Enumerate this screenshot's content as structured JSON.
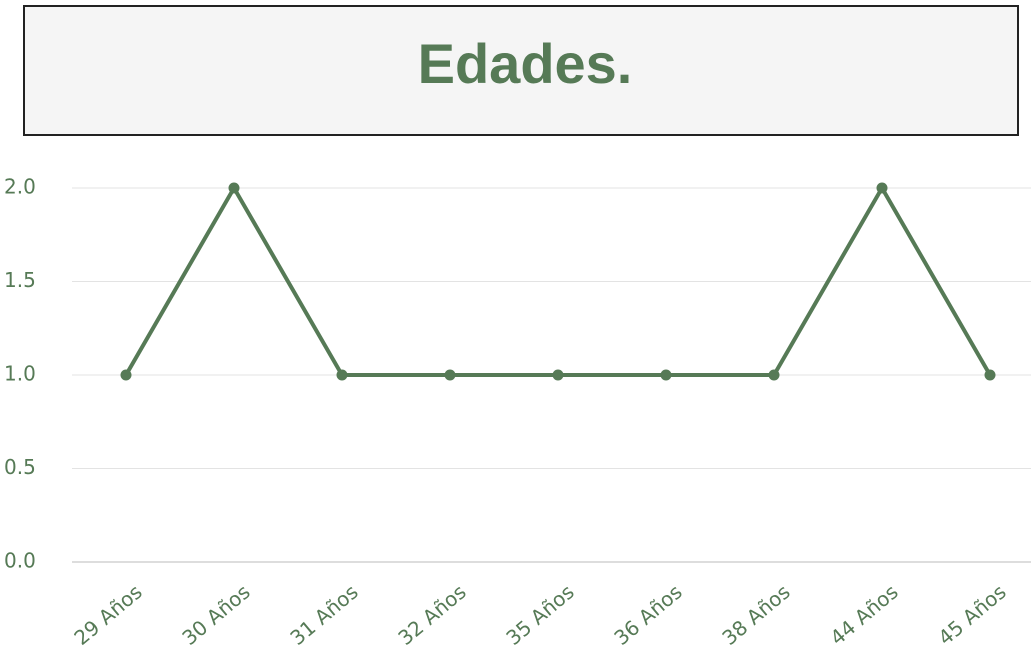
{
  "chart_data": {
    "type": "line",
    "title": "Edades.",
    "categories": [
      "29 Años",
      "30 Años",
      "31 Años",
      "32 Años",
      "35 Años",
      "36 Años",
      "38 Años",
      "44 Años",
      "45 Años"
    ],
    "values": [
      1,
      2,
      1,
      1,
      1,
      1,
      1,
      2,
      1
    ],
    "color": "#567a56",
    "ylim": [
      0,
      2
    ],
    "yticks": [
      {
        "value": 0,
        "label": "0.0"
      },
      0.5,
      {
        "value": 1,
        "label": "1.0"
      },
      1.5,
      {
        "value": 2,
        "label": "2.0"
      }
    ],
    "grid": true
  }
}
